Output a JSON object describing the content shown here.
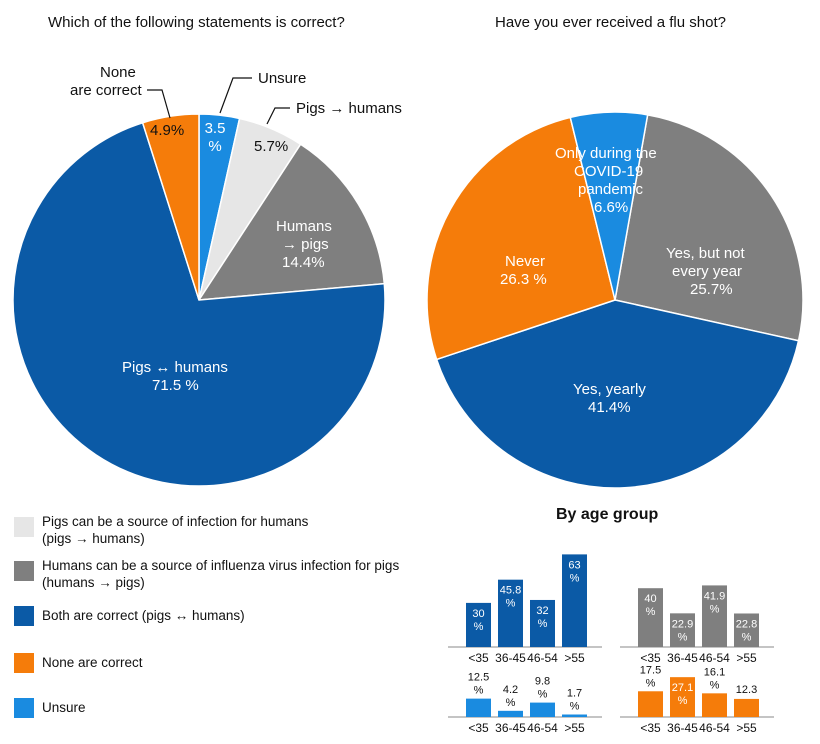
{
  "colors": {
    "dark_blue": "#0b5aa6",
    "light_gray": "#e6e6e6",
    "gray": "#7f7f7f",
    "orange": "#f57c0a",
    "light_blue": "#1a8be0"
  },
  "chart_data": [
    {
      "type": "pie",
      "title": "Which of the following statements is correct?",
      "slices": [
        {
          "label": "Unsure",
          "value": 3.5,
          "text": "3.5 %",
          "color": "#1a8be0"
        },
        {
          "label": "Pigs → humans",
          "value": 5.7,
          "text": "5.7%",
          "color": "#e6e6e6"
        },
        {
          "label": "Humans → pigs",
          "value": 14.4,
          "text": "14.4%",
          "color": "#7f7f7f"
        },
        {
          "label": "Pigs ↔ humans",
          "value": 71.5,
          "text": "71.5 %",
          "color": "#0b5aa6"
        },
        {
          "label": "None are correct",
          "value": 4.9,
          "text": "4.9%",
          "color": "#f57c0a"
        }
      ]
    },
    {
      "type": "pie",
      "title": "Have you ever received a flu shot?",
      "slices": [
        {
          "label": "Yes, but not every year",
          "value": 25.7,
          "text": "25.7%",
          "color": "#7f7f7f"
        },
        {
          "label": "Yes, yearly",
          "value": 41.4,
          "text": "41.4%",
          "color": "#0b5aa6"
        },
        {
          "label": "Never",
          "value": 26.3,
          "text": "26.3 %",
          "color": "#f57c0a"
        },
        {
          "label": "Only during the COVID-19 pandemic",
          "value": 6.6,
          "text": "6.6%",
          "color": "#1a8be0"
        }
      ]
    },
    {
      "type": "bar",
      "title": "By age group",
      "categories": [
        "<35",
        "36-45",
        "46-54",
        ">55"
      ],
      "series": [
        {
          "values": [
            30,
            45.8,
            32,
            63
          ],
          "labels": [
            "30 %",
            "45.8 %",
            "32 %",
            "63 %"
          ],
          "color": "#0b5aa6"
        },
        {
          "values": [
            40,
            22.9,
            41.9,
            22.8
          ],
          "labels": [
            "40 %",
            "22.9 %",
            "41.9 %",
            "22.8 %"
          ],
          "color": "#7f7f7f"
        },
        {
          "values": [
            12.5,
            4.2,
            9.8,
            1.7
          ],
          "labels": [
            "12.5 %",
            "4.2 %",
            "9.8 %",
            "1.7 %"
          ],
          "color": "#1a8be0"
        },
        {
          "values": [
            17.5,
            27.1,
            16.1,
            12.3
          ],
          "labels": [
            "17.5 %",
            "27.1 %",
            "16.1 %",
            "12.3"
          ],
          "color": "#f57c0a"
        }
      ]
    }
  ],
  "pie1_labels": {
    "none_a": "None",
    "none_b": "are correct",
    "unsure": "Unsure",
    "p2h": "Pigs → humans",
    "h2p_a": "Humans",
    "h2p_b": "→ pigs",
    "both": "Pigs ↔ humans"
  },
  "pie2_labels": {
    "covid_a": "Only during the",
    "covid_b": "COVID-19",
    "covid_c": "pandemic",
    "yesnot_a": "Yes, but not",
    "yesnot_b": "every year",
    "never": "Never",
    "yearly": "Yes, yearly"
  },
  "legend": [
    {
      "a": "Pigs can be a source of infection for humans",
      "b": "(pigs → humans)",
      "color": "#e6e6e6"
    },
    {
      "a": "Humans can be a source of influenza virus infection for pigs",
      "b": "(humans → pigs)",
      "color": "#7f7f7f"
    },
    {
      "a": "Both are correct (pigs ↔ humans)",
      "b": "",
      "color": "#0b5aa6"
    },
    {
      "a": "None are correct",
      "b": "",
      "color": "#f57c0a"
    },
    {
      "a": "Unsure",
      "b": "",
      "color": "#1a8be0"
    }
  ]
}
